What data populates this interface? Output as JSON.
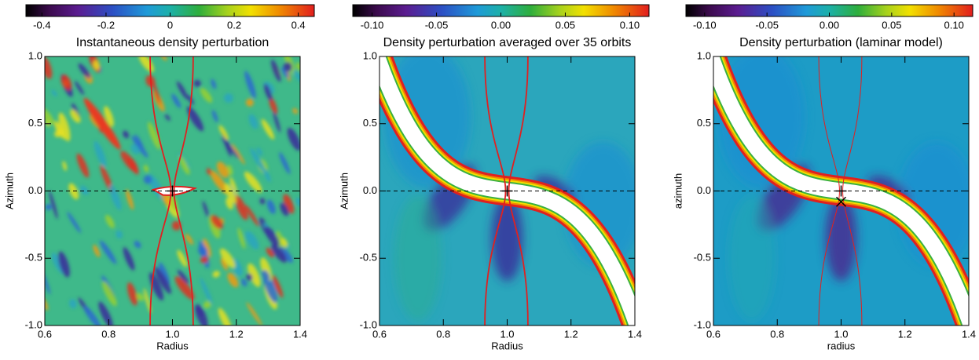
{
  "chart_data": [
    {
      "type": "heatmap",
      "title": "Instantaneous density perturbation",
      "xlabel": "Radius",
      "ylabel": "Azimuth",
      "xlim": [
        0.6,
        1.4
      ],
      "ylim": [
        -1.0,
        1.0
      ],
      "xticks": [
        0.6,
        0.8,
        {
          "value": 1.0,
          "label": "1.0"
        },
        1.2,
        1.4
      ],
      "yticks": [
        {
          "value": -1.0,
          "label": "-1.0"
        },
        -0.5,
        {
          "value": 0.0,
          "label": "0.0"
        },
        0.5,
        {
          "value": 1.0,
          "label": "1.0"
        }
      ],
      "colorbar": {
        "lim": [
          -0.45,
          0.45
        ],
        "ticks": [
          -0.4,
          -0.2,
          0,
          0.2,
          0.4
        ]
      }
    },
    {
      "type": "heatmap",
      "title": "Density perturbation averaged over 35 orbits",
      "xlabel": "Radius",
      "ylabel": "Azimuth",
      "xlim": [
        0.6,
        1.4
      ],
      "ylim": [
        -1.0,
        1.0
      ],
      "xticks": [
        0.6,
        0.8,
        {
          "value": 1.0,
          "label": "1.0"
        },
        1.2,
        1.4
      ],
      "yticks": [
        {
          "value": -1.0,
          "label": "-1.0"
        },
        -0.5,
        {
          "value": 0.0,
          "label": "0.0"
        },
        0.5,
        {
          "value": 1.0,
          "label": "1.0"
        }
      ],
      "colorbar": {
        "lim": [
          -0.115,
          0.115
        ],
        "ticks": [
          {
            "value": -0.1,
            "label": "-0.10"
          },
          -0.05,
          {
            "value": 0.0,
            "label": "0.00"
          },
          0.05,
          {
            "value": 0.1,
            "label": "0.10"
          }
        ]
      }
    },
    {
      "type": "heatmap",
      "title": "Density perturbation (laminar model)",
      "xlabel": "radius",
      "ylabel": "azimuth",
      "xlim": [
        0.6,
        1.4
      ],
      "ylim": [
        -1.0,
        1.0
      ],
      "xticks": [
        0.6,
        0.8,
        {
          "value": 1.0,
          "label": "1.0"
        },
        1.2,
        1.4
      ],
      "yticks": [
        {
          "value": -1.0,
          "label": "-1.0"
        },
        -0.5,
        {
          "value": 0.0,
          "label": "0.0"
        },
        0.5,
        {
          "value": 1.0,
          "label": "1.0"
        }
      ],
      "colorbar": {
        "lim": [
          -0.115,
          0.115
        ],
        "ticks": [
          {
            "value": -0.1,
            "label": "-0.10"
          },
          -0.05,
          {
            "value": 0.0,
            "label": "0.00"
          },
          0.05,
          {
            "value": 0.1,
            "label": "0.10"
          }
        ]
      }
    }
  ]
}
